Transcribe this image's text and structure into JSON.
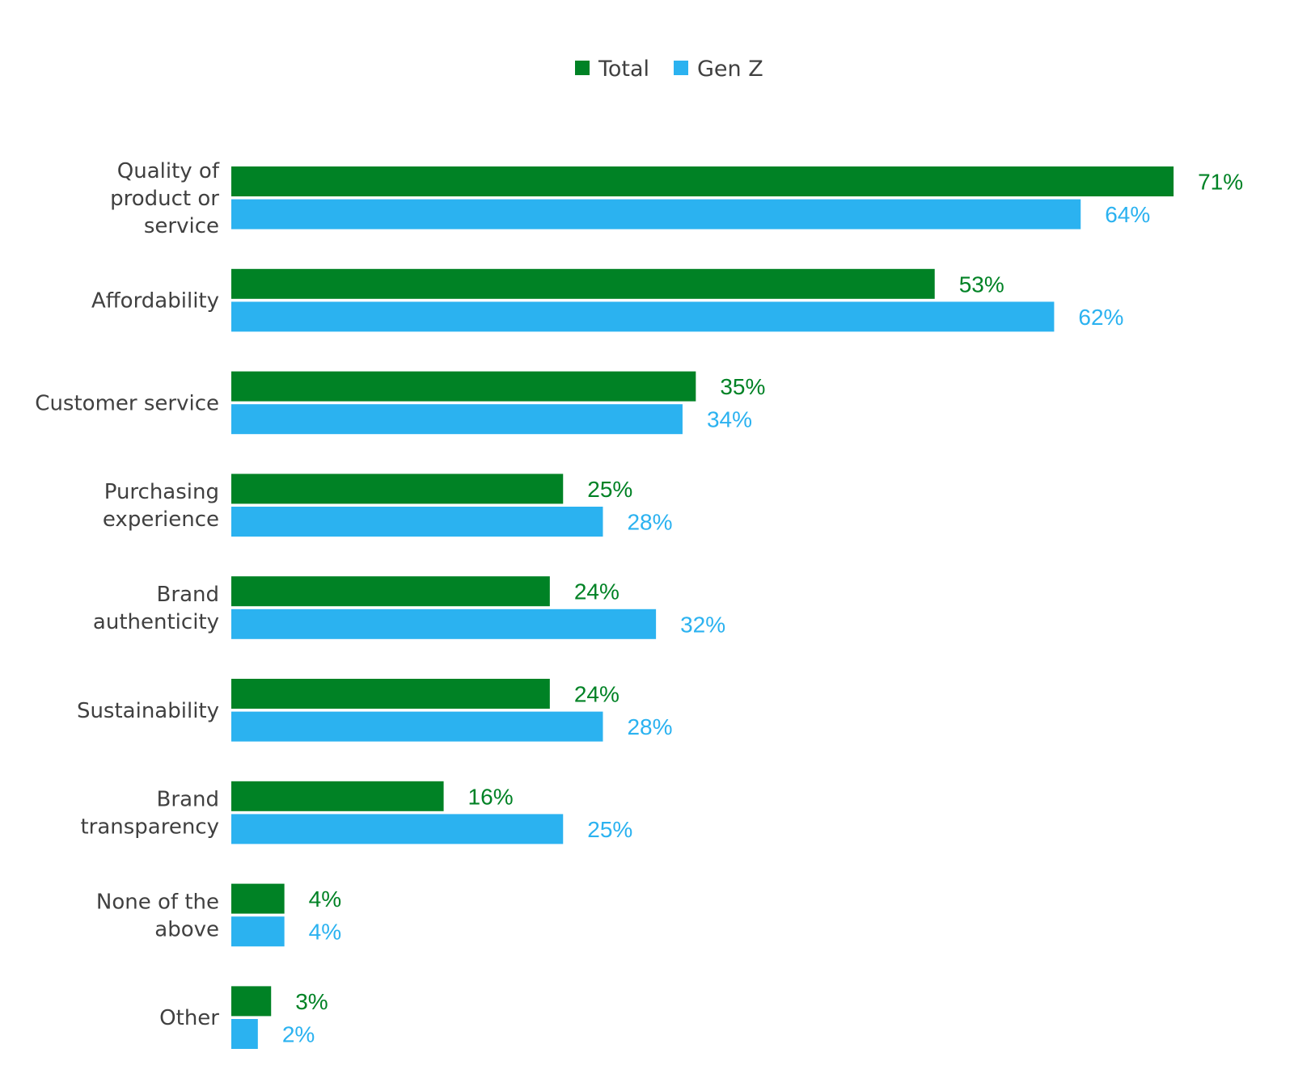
{
  "chart_data": {
    "type": "bar",
    "orientation": "horizontal",
    "categories": [
      [
        "Quality of",
        "product or",
        "service"
      ],
      [
        "Affordability"
      ],
      [
        "Customer service"
      ],
      [
        "Purchasing",
        "experience"
      ],
      [
        "Brand",
        "authenticity"
      ],
      [
        "Sustainability"
      ],
      [
        "Brand",
        "transparency"
      ],
      [
        "None of the",
        "above"
      ],
      [
        "Other"
      ]
    ],
    "series": [
      {
        "name": "Total",
        "color": "#008225",
        "values": [
          71,
          53,
          35,
          25,
          24,
          24,
          16,
          4,
          3
        ],
        "labels": [
          "71%",
          "53%",
          "35%",
          "25%",
          "24%",
          "24%",
          "16%",
          "4%",
          "3%"
        ]
      },
      {
        "name": "Gen Z",
        "color": "#2bb2f0",
        "values": [
          64,
          62,
          34,
          28,
          32,
          28,
          25,
          4,
          2
        ],
        "labels": [
          "64%",
          "62%",
          "34%",
          "28%",
          "32%",
          "28%",
          "25%",
          "4%",
          "2%"
        ]
      }
    ],
    "xlim": [
      0,
      71
    ],
    "legend_position": "top-center",
    "grid": false,
    "axes_visible": false
  }
}
